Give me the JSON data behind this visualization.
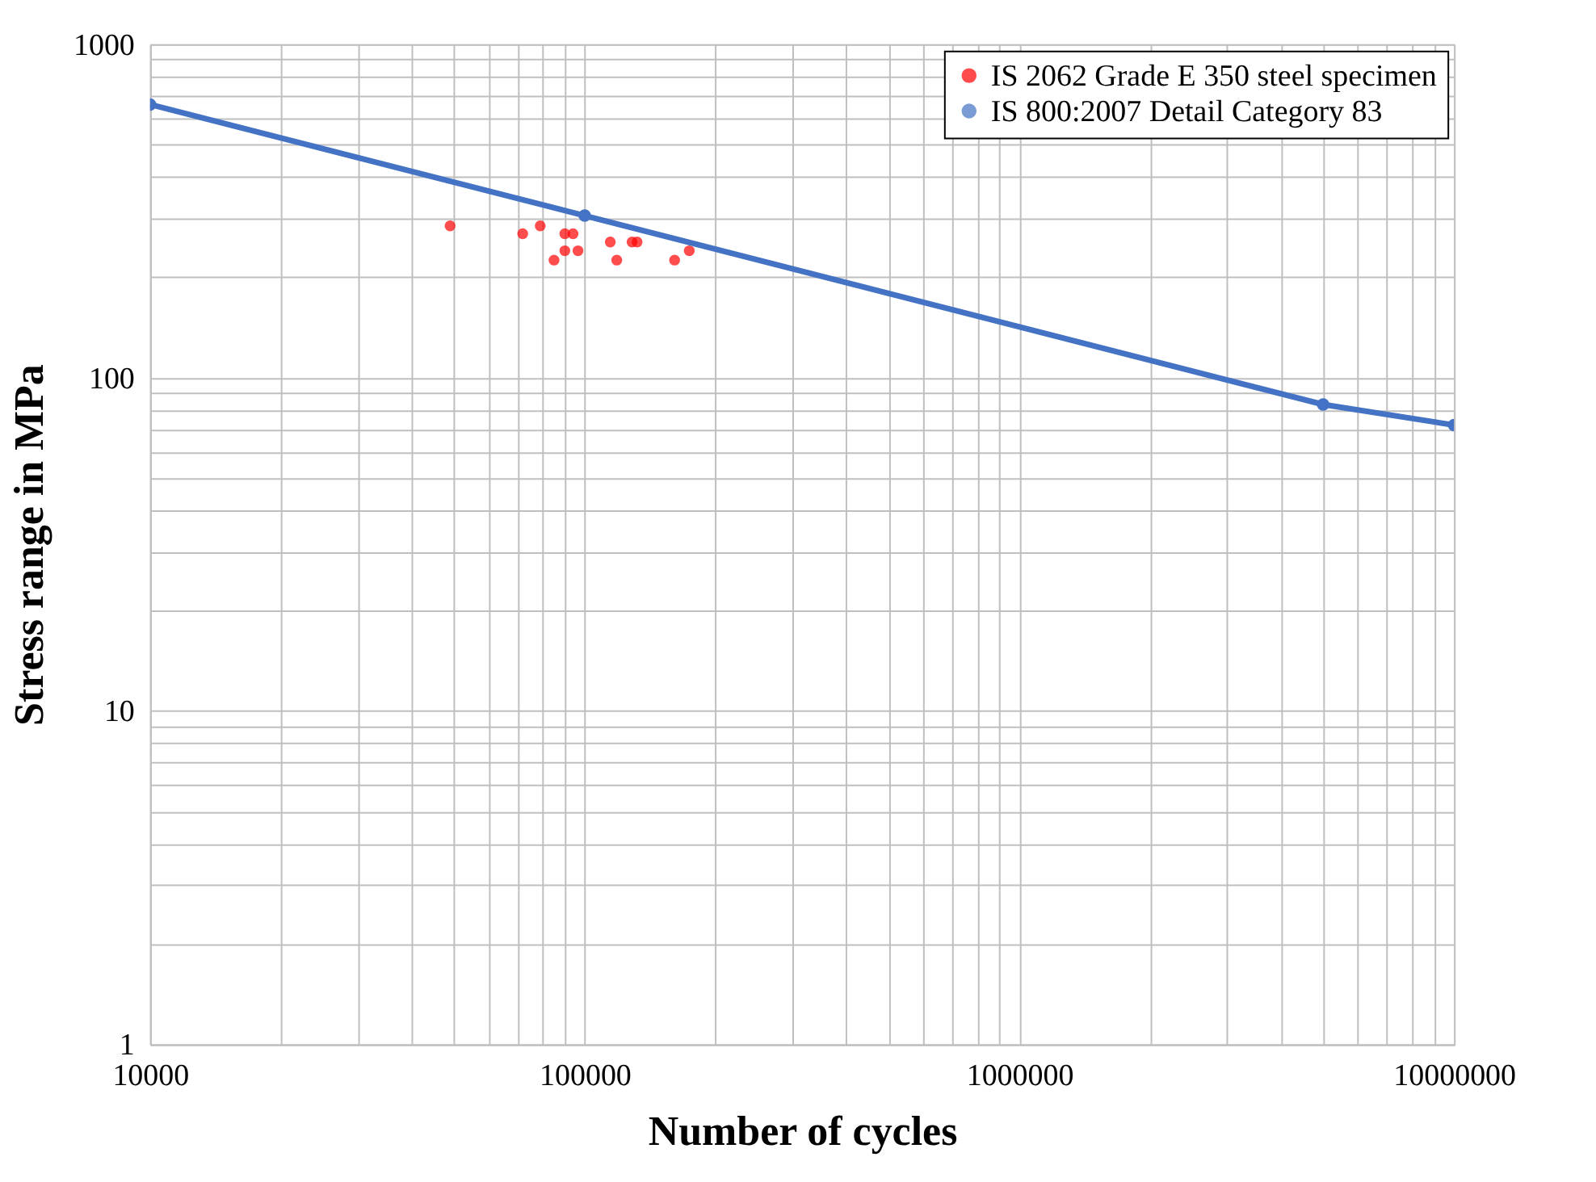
{
  "chart_data": {
    "type": "scatter",
    "xlabel": "Number of cycles",
    "ylabel": "Stress range in MPa",
    "log": "xy",
    "grid": true,
    "legend": "top right",
    "marker": "circle",
    "line_style": "solid",
    "xlim": [
      10000,
      10000000
    ],
    "ylim": [
      1,
      1000
    ],
    "xticks": [
      10000,
      {
        "value": 20000,
        "label": null
      },
      {
        "value": 30000,
        "label": null
      },
      {
        "value": 40000,
        "label": null
      },
      {
        "value": 50000,
        "label": null
      },
      {
        "value": 60000,
        "label": null
      },
      {
        "value": 70000,
        "label": null
      },
      {
        "value": 80000,
        "label": null
      },
      {
        "value": 90000,
        "label": null
      },
      100000,
      {
        "value": 200000,
        "label": null
      },
      {
        "value": 300000,
        "label": null
      },
      {
        "value": 400000,
        "label": null
      },
      {
        "value": 500000,
        "label": null
      },
      {
        "value": 600000,
        "label": null
      },
      {
        "value": 700000,
        "label": null
      },
      {
        "value": 800000,
        "label": null
      },
      {
        "value": 900000,
        "label": null
      },
      1000000,
      {
        "value": 2000000,
        "label": null
      },
      {
        "value": 3000000,
        "label": null
      },
      {
        "value": 4000000,
        "label": null
      },
      {
        "value": 5000000,
        "label": null
      },
      {
        "value": 6000000,
        "label": null
      },
      {
        "value": 7000000,
        "label": null
      },
      {
        "value": 8000000,
        "label": null
      },
      {
        "value": 9000000,
        "label": null
      },
      10000000
    ],
    "yticks": [
      1,
      {
        "value": 2,
        "label": null
      },
      {
        "value": 3,
        "label": null
      },
      {
        "value": 4,
        "label": null
      },
      {
        "value": 5,
        "label": null
      },
      {
        "value": 6,
        "label": null
      },
      {
        "value": 7,
        "label": null
      },
      {
        "value": 8,
        "label": null
      },
      {
        "value": 9,
        "label": null
      },
      10,
      {
        "value": 20,
        "label": null
      },
      {
        "value": 30,
        "label": null
      },
      {
        "value": 40,
        "label": null
      },
      {
        "value": 50,
        "label": null
      },
      {
        "value": 60,
        "label": null
      },
      {
        "value": 70,
        "label": null
      },
      {
        "value": 80,
        "label": null
      },
      {
        "value": 90,
        "label": null
      },
      100,
      {
        "value": 200,
        "label": null
      },
      {
        "value": 300,
        "label": null
      },
      {
        "value": 400,
        "label": null
      },
      {
        "value": 500,
        "label": null
      },
      {
        "value": 600,
        "label": null
      },
      {
        "value": 700,
        "label": null
      },
      {
        "value": 800,
        "label": null
      },
      {
        "value": 900,
        "label": null
      },
      1000
    ],
    "series": [
      {
        "name": "IS 2062 Grade E 350 steel specimen",
        "color": "#ff0000",
        "x": [
          49000,
          72000,
          79000,
          90000,
          94000,
          85000,
          90000,
          96500,
          114500,
          118500,
          128500,
          132000,
          161000,
          174000
        ],
        "values": [
          285,
          270,
          285,
          270,
          270,
          225,
          240,
          240,
          255,
          225,
          255,
          255,
          225,
          240
        ]
      },
      {
        "name": "IS 800:2007 Detail Category 83",
        "type": "line",
        "color": "#4472c4",
        "x": [
          10000,
          100000,
          5000000,
          10000000
        ],
        "values": [
          659,
          306,
          83,
          72
        ]
      }
    ]
  }
}
